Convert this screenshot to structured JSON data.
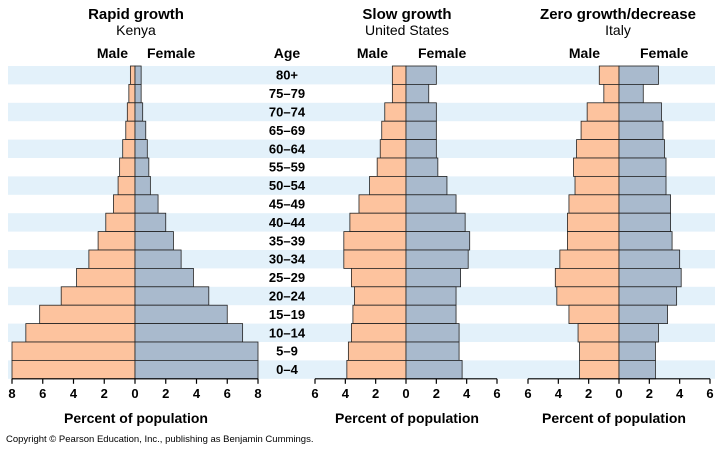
{
  "colors": {
    "male": "#fdc39e",
    "female": "#a9bacd",
    "stripe": "#e3f1fa",
    "bar_stroke": "#222222"
  },
  "age_header": "Age",
  "copyright": "Copyright © Pearson Education, Inc., publishing as Benjamin Cummings.",
  "chart_data": [
    {
      "type": "bar",
      "orientation": "horizontal-population-pyramid",
      "title": "Rapid growth",
      "subtitle": "Kenya",
      "male_label": "Male",
      "female_label": "Female",
      "xlabel": "Percent of population",
      "xticks": [
        "8",
        "6",
        "4",
        "2",
        "0",
        "2",
        "4",
        "6",
        "8"
      ],
      "xlim": [
        -8,
        8
      ],
      "categories": [
        "80+",
        "75–79",
        "70–74",
        "65–69",
        "60–64",
        "55–59",
        "50–54",
        "45–49",
        "40–44",
        "35–39",
        "30–34",
        "25–29",
        "20–24",
        "15–19",
        "10–14",
        "5–9",
        "0–4"
      ],
      "series": [
        {
          "name": "Male",
          "values": [
            0.3,
            0.4,
            0.5,
            0.6,
            0.8,
            1.0,
            1.1,
            1.4,
            1.9,
            2.4,
            3.0,
            3.8,
            4.8,
            6.2,
            7.1,
            8.0,
            8.0
          ]
        },
        {
          "name": "Female",
          "values": [
            0.4,
            0.4,
            0.5,
            0.7,
            0.8,
            0.9,
            1.0,
            1.5,
            2.0,
            2.5,
            3.0,
            3.8,
            4.8,
            6.0,
            7.0,
            8.0,
            8.0
          ]
        }
      ]
    },
    {
      "type": "bar",
      "orientation": "horizontal-population-pyramid",
      "title": "Slow growth",
      "subtitle": "United States",
      "male_label": "Male",
      "female_label": "Female",
      "xlabel": "Percent of population",
      "xticks": [
        "6",
        "4",
        "2",
        "0",
        "2",
        "4",
        "6"
      ],
      "xlim": [
        -6,
        6
      ],
      "categories": [
        "80+",
        "75–79",
        "70–74",
        "65–69",
        "60–64",
        "55–59",
        "50–54",
        "45–49",
        "40–44",
        "35–39",
        "30–34",
        "25–29",
        "20–24",
        "15–19",
        "10–14",
        "5–9",
        "0–4"
      ],
      "series": [
        {
          "name": "Male",
          "values": [
            0.9,
            0.9,
            1.4,
            1.6,
            1.7,
            1.9,
            2.4,
            3.1,
            3.7,
            4.1,
            4.1,
            3.6,
            3.4,
            3.5,
            3.6,
            3.8,
            3.9
          ]
        },
        {
          "name": "Female",
          "values": [
            2.0,
            1.5,
            2.0,
            2.0,
            2.0,
            2.1,
            2.7,
            3.3,
            3.9,
            4.2,
            4.1,
            3.6,
            3.3,
            3.3,
            3.5,
            3.5,
            3.7
          ]
        }
      ]
    },
    {
      "type": "bar",
      "orientation": "horizontal-population-pyramid",
      "title": "Zero growth/decrease",
      "subtitle": "Italy",
      "male_label": "Male",
      "female_label": "Female",
      "xlabel": "Percent of population",
      "xticks": [
        "6",
        "4",
        "2",
        "0",
        "2",
        "4",
        "6"
      ],
      "xlim": [
        -6,
        6
      ],
      "categories": [
        "80+",
        "75–79",
        "70–74",
        "65–69",
        "60–64",
        "55–59",
        "50–54",
        "45–49",
        "40–44",
        "35–39",
        "30–34",
        "25–29",
        "20–24",
        "15–19",
        "10–14",
        "5–9",
        "0–4"
      ],
      "series": [
        {
          "name": "Male",
          "values": [
            1.3,
            1.0,
            2.1,
            2.5,
            2.8,
            3.0,
            2.9,
            3.3,
            3.4,
            3.4,
            3.9,
            4.2,
            4.1,
            3.3,
            2.7,
            2.6,
            2.6
          ]
        },
        {
          "name": "Female",
          "values": [
            2.6,
            1.6,
            2.8,
            2.9,
            3.0,
            3.1,
            3.1,
            3.4,
            3.4,
            3.5,
            4.0,
            4.1,
            3.8,
            3.2,
            2.6,
            2.4,
            2.4
          ]
        }
      ]
    }
  ]
}
